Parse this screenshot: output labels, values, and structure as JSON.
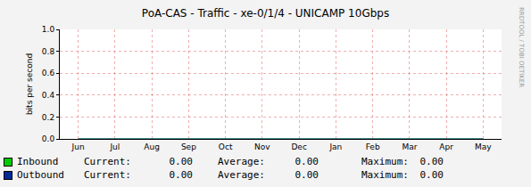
{
  "chart_data": {
    "type": "line",
    "title": "PoA-CAS - Traffic - xe-0/1/4 - UNICAMP 10Gbps",
    "y_label": "bits per second",
    "categories": [
      "Jun",
      "Jul",
      "Aug",
      "Sep",
      "Oct",
      "Nov",
      "Dec",
      "Jan",
      "Feb",
      "Mar",
      "Apr",
      "May"
    ],
    "series": [
      {
        "name": "Inbound",
        "type": "area",
        "color": "#00cc00",
        "values": [
          0,
          0,
          0,
          0,
          0,
          0,
          0,
          0,
          0,
          0,
          0,
          0
        ],
        "stats": [
          {
            "value": 0,
            "label": "0.00"
          },
          {
            "value": 0,
            "label": "0.00"
          },
          {
            "value": 0,
            "label": "0.00"
          }
        ]
      },
      {
        "name": "Outbound",
        "type": "line",
        "color": "#002a97",
        "values": [
          0,
          0,
          0,
          0,
          0,
          0,
          0,
          0,
          0,
          0,
          0,
          0
        ],
        "stats": [
          {
            "value": 0,
            "label": "0.00"
          },
          {
            "value": 0,
            "label": "0.00"
          },
          {
            "value": 0,
            "label": "0.00"
          }
        ]
      }
    ],
    "stats_labels": [
      "Current:",
      "Average:",
      "Maximum:"
    ],
    "ylim": [
      0,
      1
    ],
    "yticks": [
      {
        "value": 0,
        "label": "0.0"
      },
      {
        "value": 0.2,
        "label": "0.2"
      },
      {
        "value": 0.4,
        "label": "0.4"
      },
      {
        "value": 0.6,
        "label": "0.6"
      },
      {
        "value": 0.8,
        "label": "0.8"
      },
      {
        "value": 1,
        "label": "1.0"
      }
    ],
    "grid": true,
    "watermark": "RRDTOOL / TOBI OETIKER"
  }
}
